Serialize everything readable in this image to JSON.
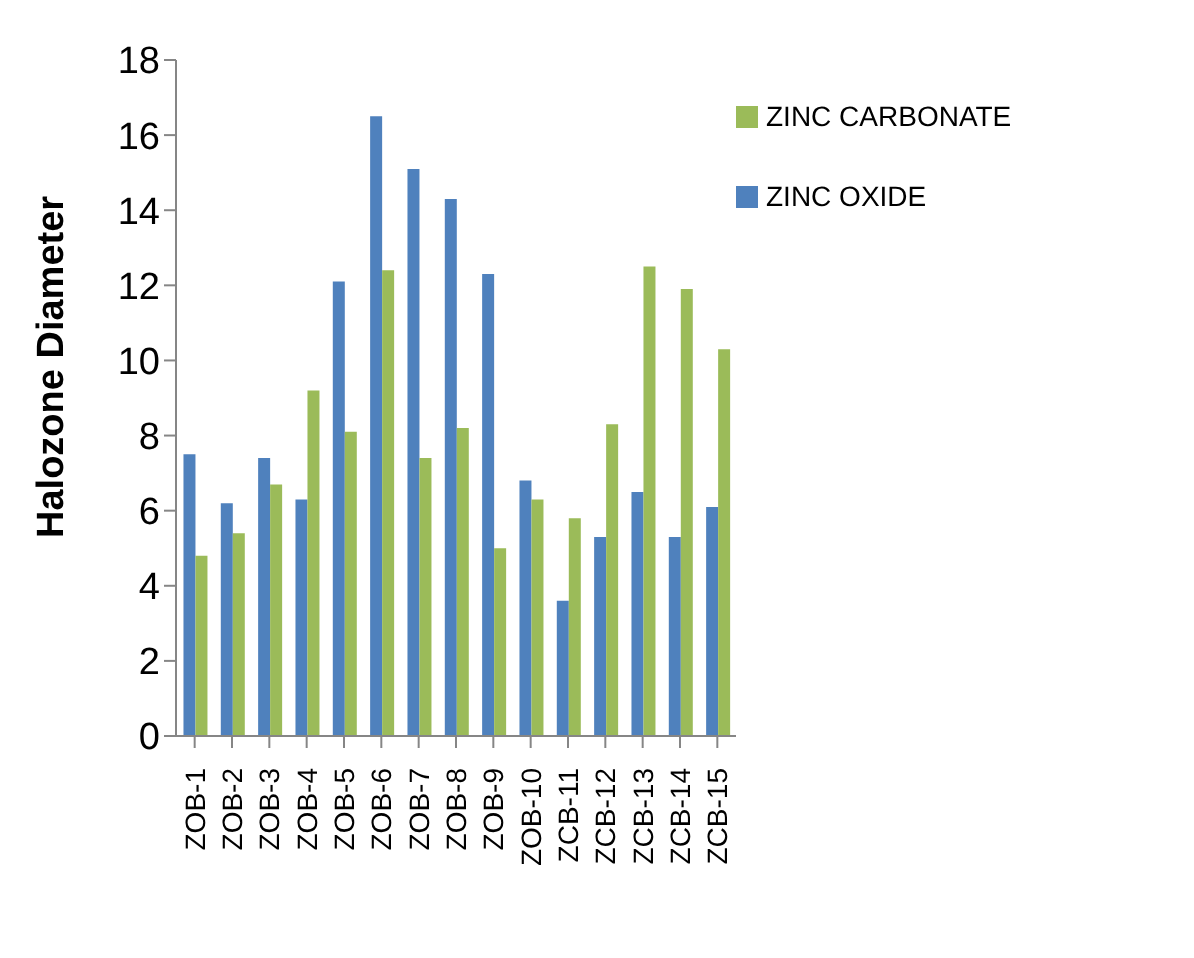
{
  "chart_data": {
    "type": "bar",
    "ylabel": "Halozone Diameter",
    "categories": [
      "ZOB-1",
      "ZOB-2",
      "ZOB-3",
      "ZOB-4",
      "ZOB-5",
      "ZOB-6",
      "ZOB-7",
      "ZOB-8",
      "ZOB-9",
      "ZOB-10",
      "ZCB-11",
      "ZCB-12",
      "ZCB-13",
      "ZCB-14",
      "ZCB-15"
    ],
    "series": [
      {
        "name": "ZINC OXIDE",
        "color": "#4f81bd",
        "values": [
          7.5,
          6.2,
          7.4,
          6.3,
          12.1,
          16.5,
          15.1,
          14.3,
          12.3,
          6.8,
          3.6,
          5.3,
          6.5,
          5.3,
          6.1
        ]
      },
      {
        "name": "ZINC CARBONATE",
        "color": "#9bbb59",
        "values": [
          4.8,
          5.4,
          6.7,
          9.2,
          8.1,
          12.4,
          7.4,
          8.2,
          5.0,
          6.3,
          5.8,
          8.3,
          12.5,
          11.9,
          10.3
        ]
      }
    ],
    "ylim": [
      0,
      18
    ],
    "yticks": [
      0,
      2,
      4,
      6,
      8,
      10,
      12,
      14,
      16,
      18
    ],
    "grid": false,
    "legend": "top right"
  }
}
